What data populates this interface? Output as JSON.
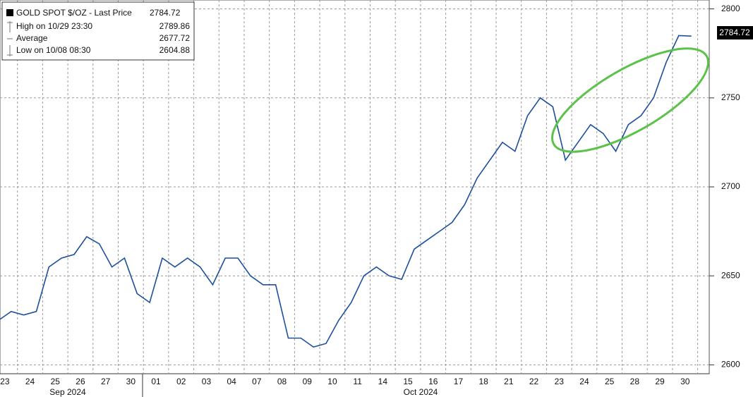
{
  "chart_data": {
    "type": "line",
    "legend": {
      "title": "GOLD SPOT $/OZ - Last Price",
      "last": 2784.72,
      "rows": [
        {
          "label": "High on 10/29 23:30",
          "value": 2789.86
        },
        {
          "label": "Average",
          "value": 2677.72
        },
        {
          "label": "Low on 10/08 08:30",
          "value": 2604.88
        }
      ]
    },
    "month_labels": [
      "Sep 2024",
      "Oct 2024"
    ],
    "categories": [
      "23",
      null,
      "24",
      null,
      "25",
      null,
      "26",
      null,
      "27",
      null,
      "30",
      null,
      "01",
      null,
      "02",
      null,
      "03",
      null,
      "04",
      null,
      "07",
      null,
      "08",
      null,
      "09",
      null,
      "10",
      null,
      "11",
      null,
      "14",
      null,
      "15",
      null,
      "16",
      null,
      "17",
      null,
      "18",
      null,
      "21",
      null,
      "22",
      null,
      "23",
      null,
      "24",
      null,
      "25",
      null,
      "28",
      null,
      "29",
      null,
      "30",
      null
    ],
    "series": [
      {
        "name": "GOLD SPOT $/OZ",
        "color": "#1c4f9c",
        "values": [
          2625,
          2630,
          2628,
          2630,
          2655,
          2660,
          2662,
          2672,
          2668,
          2655,
          2660,
          2640,
          2635,
          2660,
          2655,
          2660,
          2655,
          2645,
          2660,
          2660,
          2650,
          2645,
          2645,
          2615,
          2615,
          2610,
          2612,
          2625,
          2635,
          2650,
          2655,
          2650,
          2648,
          2665,
          2670,
          2675,
          2680,
          2690,
          2705,
          2715,
          2725,
          2720,
          2740,
          2750,
          2745,
          2715,
          2725,
          2735,
          2730,
          2720,
          2735,
          2740,
          2750,
          2770,
          2785,
          2784.72
        ]
      }
    ],
    "ylim": [
      2595,
      2805
    ],
    "yticks": [
      2600,
      2650,
      2700,
      2750,
      2800
    ],
    "grid": true
  }
}
